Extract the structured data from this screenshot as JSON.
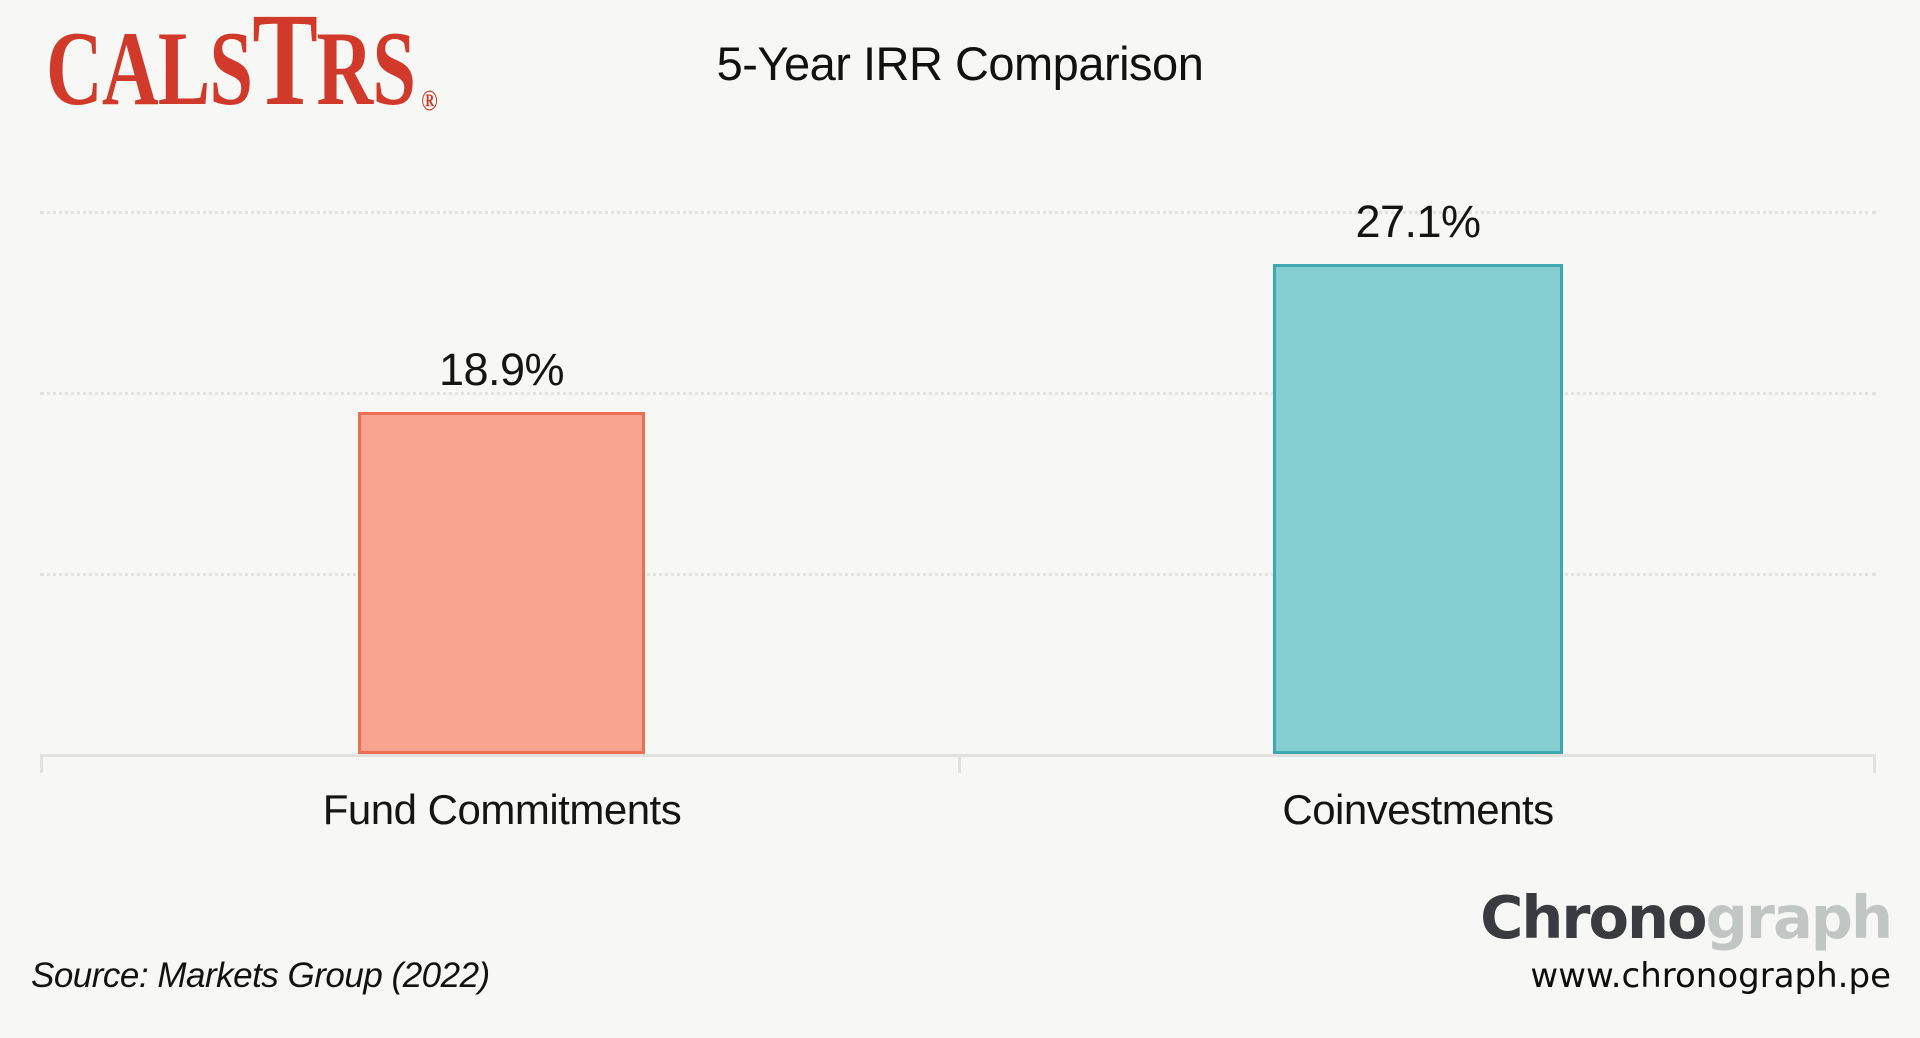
{
  "header": {
    "logo": {
      "pre": "CALS",
      "t": "T",
      "post": "RS",
      "registered": "®",
      "color": "#D13A2B"
    }
  },
  "chart_data": {
    "type": "bar",
    "title": "5-Year IRR Comparison",
    "categories": [
      "Fund Commitments",
      "Coinvestments"
    ],
    "values": [
      18.9,
      27.1
    ],
    "value_labels": [
      "18.9%",
      "27.1%"
    ],
    "xlabel": "",
    "ylabel": "",
    "ylim": [
      0,
      30
    ],
    "gridline_values": [
      10,
      20,
      30
    ],
    "grid_style": "dotted horizontal",
    "legend_position": "none",
    "series_colors": [
      {
        "fill": "#F8A491",
        "border": "#EB7051"
      },
      {
        "fill": "#85CFD3",
        "border": "#3EA9B0"
      }
    ],
    "axis_color": "#E2E1DE",
    "background": "#F7F7F5"
  },
  "footer": {
    "source": "Source: Markets Group (2022)",
    "brand": {
      "dark_part": "Chrono",
      "light_part": "graph",
      "dark_color": "#3A3B3E",
      "light_color": "#C1C6C5",
      "url": "www.chronograph.pe"
    }
  }
}
